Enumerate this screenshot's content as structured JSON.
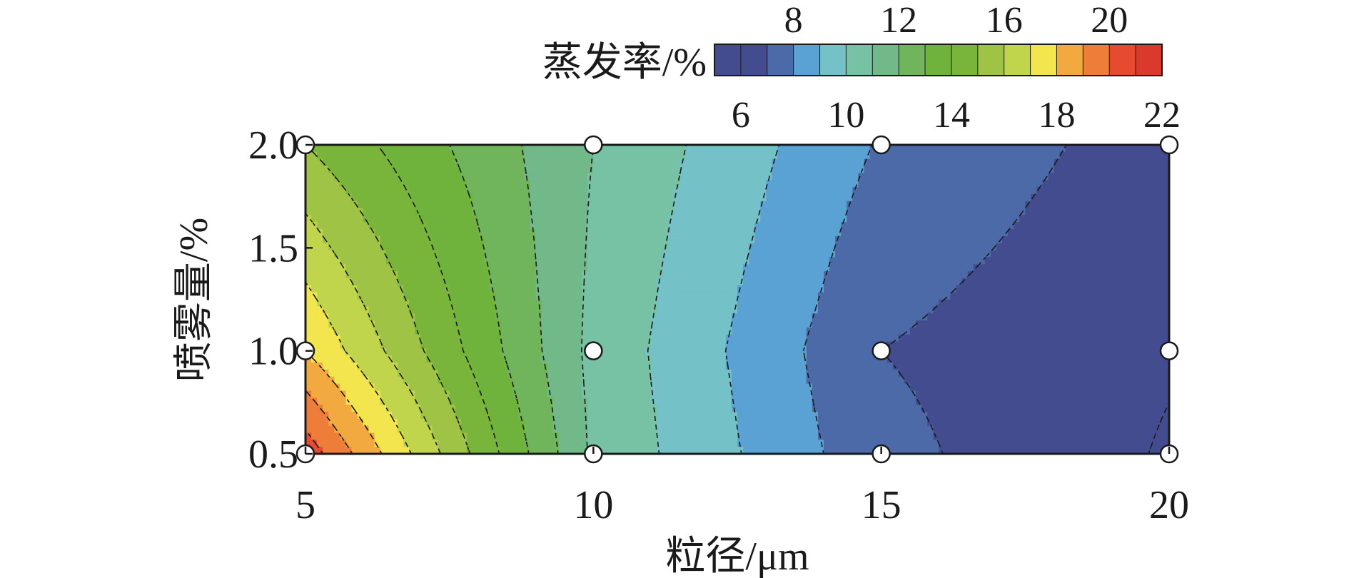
{
  "chart_data": {
    "type": "heatmap",
    "subtype": "filled-contour",
    "title": "",
    "xlabel": "粒径/μm",
    "ylabel": "喷雾量/%",
    "x_ticks": [
      "5",
      "10",
      "15",
      "20"
    ],
    "y_ticks": [
      "0.5",
      "1.0",
      "1.5",
      "2.0"
    ],
    "xlim": [
      5,
      20
    ],
    "ylim": [
      0.5,
      2.0
    ],
    "x": [
      5,
      10,
      15,
      20
    ],
    "y": [
      0.5,
      1.0,
      2.0
    ],
    "z": [
      [
        20.6,
        10.8,
        7.3,
        5.9
      ],
      [
        18.0,
        10.7,
        7.0,
        6.1
      ],
      [
        15.0,
        11.0,
        7.9,
        6.5
      ]
    ],
    "z_units": "%",
    "grid": false,
    "contour_lines": "dashed",
    "data_points": [
      {
        "x": 5,
        "y": 0.5
      },
      {
        "x": 5,
        "y": 1.0
      },
      {
        "x": 5,
        "y": 2.0
      },
      {
        "x": 10,
        "y": 0.5
      },
      {
        "x": 10,
        "y": 1.0
      },
      {
        "x": 10,
        "y": 2.0
      },
      {
        "x": 15,
        "y": 0.5
      },
      {
        "x": 15,
        "y": 1.0
      },
      {
        "x": 15,
        "y": 2.0
      },
      {
        "x": 20,
        "y": 0.5
      },
      {
        "x": 20,
        "y": 1.0
      },
      {
        "x": 20,
        "y": 2.0
      }
    ],
    "colorbar": {
      "title": "蒸发率/%",
      "placement": "top-right",
      "ticks_top": [
        "8",
        "12",
        "16",
        "20"
      ],
      "ticks_bottom": [
        "6",
        "10",
        "14",
        "18",
        "22"
      ],
      "levels": [
        5,
        6,
        7,
        8,
        9,
        10,
        11,
        12,
        13,
        14,
        15,
        16,
        17,
        18,
        19,
        20,
        21,
        22
      ],
      "colors": [
        "#434c8e",
        "#434c8e",
        "#4d6aa8",
        "#5aa2d4",
        "#74c1c7",
        "#77c2a4",
        "#72b98a",
        "#70b45c",
        "#6fb33c",
        "#7ab53b",
        "#9fc445",
        "#c1d54c",
        "#f2e54e",
        "#f2a93f",
        "#ef7d3a",
        "#e64a30",
        "#d93a2b"
      ]
    }
  }
}
